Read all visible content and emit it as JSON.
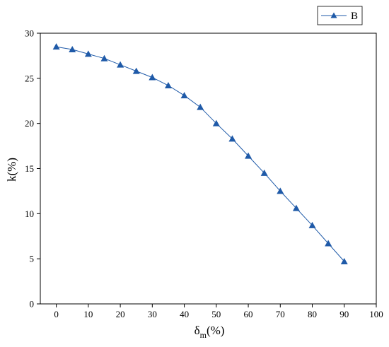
{
  "chart_data": {
    "type": "line",
    "x": [
      0,
      5,
      10,
      15,
      20,
      25,
      30,
      35,
      40,
      45,
      50,
      55,
      60,
      65,
      70,
      75,
      80,
      85,
      90
    ],
    "series": [
      {
        "name": "B",
        "values": [
          28.5,
          28.2,
          27.7,
          27.2,
          26.5,
          25.8,
          25.1,
          24.2,
          23.1,
          21.8,
          20.0,
          18.3,
          16.4,
          14.5,
          12.5,
          10.6,
          8.7,
          6.7,
          4.7
        ],
        "color": "#1f5aa8",
        "marker": "triangle"
      }
    ],
    "xlabel": "δm(%)",
    "xlabel_main": "δ",
    "xlabel_sub": "m",
    "xlabel_tail": "(%)",
    "ylabel": "k(%)",
    "xlim": [
      -5,
      100
    ],
    "ylim": [
      0,
      30
    ],
    "xticks": [
      0,
      10,
      20,
      30,
      40,
      50,
      60,
      70,
      80,
      90,
      100
    ],
    "yticks": [
      0,
      5,
      10,
      15,
      20,
      25,
      30
    ],
    "grid": false,
    "legend_position": "top-right"
  }
}
